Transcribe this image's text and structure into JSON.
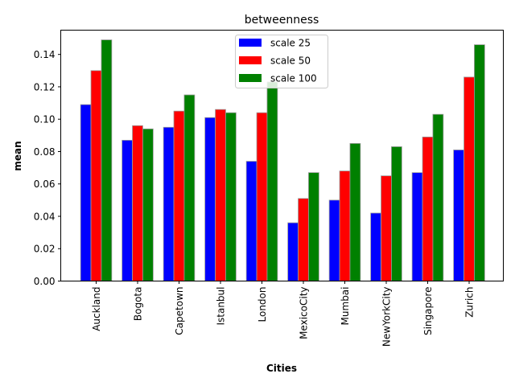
{
  "chart_data": {
    "type": "bar",
    "title": "betweenness",
    "xlabel": "Cities",
    "ylabel": "mean",
    "categories": [
      "Auckland",
      "Bogota",
      "Capetown",
      "Istanbul",
      "London",
      "MexicoCity",
      "Mumbai",
      "NewYorkCity",
      "Singapore",
      "Zurich"
    ],
    "series": [
      {
        "name": "scale 25",
        "color": "#0000ff",
        "values": [
          0.109,
          0.087,
          0.095,
          0.101,
          0.074,
          0.036,
          0.05,
          0.042,
          0.067,
          0.081
        ]
      },
      {
        "name": "scale 50",
        "color": "#ff0000",
        "values": [
          0.13,
          0.096,
          0.105,
          0.106,
          0.104,
          0.051,
          0.068,
          0.065,
          0.089,
          0.126
        ]
      },
      {
        "name": "scale 100",
        "color": "#008000",
        "values": [
          0.149,
          0.094,
          0.115,
          0.104,
          0.123,
          0.067,
          0.085,
          0.083,
          0.103,
          0.146
        ]
      }
    ],
    "ylim": [
      0,
      0.155
    ],
    "yticks": [
      "0.00",
      "0.02",
      "0.04",
      "0.06",
      "0.08",
      "0.10",
      "0.12",
      "0.14"
    ],
    "legend_position": "top-center",
    "grid": false
  }
}
